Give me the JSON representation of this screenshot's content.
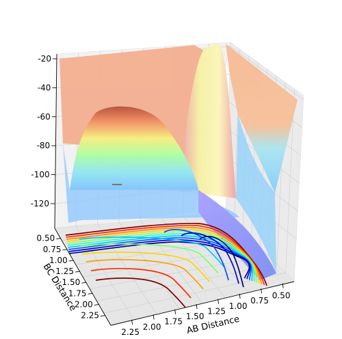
{
  "chart_data": {
    "type": "surface3d",
    "title": "",
    "xlabel": "AB Distance",
    "ylabel": "BC Distance",
    "zlabel": "",
    "z_ticks": [
      "-20",
      "-40",
      "-60",
      "-80",
      "-100",
      "-120"
    ],
    "ab_ticks": [
      "2.25",
      "2.00",
      "1.75",
      "1.50",
      "1.25",
      "1.00",
      "0.75",
      "0.50"
    ],
    "bc_ticks": [
      "0.50",
      "0.75",
      "1.00",
      "1.25",
      "1.50",
      "1.75",
      "2.00",
      "2.25"
    ],
    "colormap": "jet",
    "colormap_stops": [
      "#00007f",
      "#0000ff",
      "#007fff",
      "#00e5ff",
      "#7fff7f",
      "#ffe500",
      "#ff7f00",
      "#ff0000",
      "#7f0000"
    ],
    "surface_regions": [
      {
        "name": "outer-plateau-left",
        "color": "#f4ae8e"
      },
      {
        "name": "outer-plateau-right",
        "color": "#f7b48e"
      },
      {
        "name": "hill-top",
        "color": "#b64a33"
      },
      {
        "name": "hill-band-orange",
        "color": "#f79060"
      },
      {
        "name": "hill-band-yellow",
        "color": "#f6f27e"
      },
      {
        "name": "hill-band-green",
        "color": "#a6ff9e"
      },
      {
        "name": "hill-band-cyan",
        "color": "#8be8f0"
      },
      {
        "name": "valley-blue",
        "color": "#8fbfff"
      },
      {
        "name": "channel-blue",
        "color": "#9a95f8"
      },
      {
        "name": "ridge-pink",
        "color": "#ef9ea6"
      },
      {
        "name": "ridge-yellow",
        "color": "#f7f4a6"
      }
    ],
    "contour_colors": [
      "#800000",
      "#ff2a00",
      "#ff8c00",
      "#ffd500",
      "#8cff6e",
      "#2bffcf",
      "#00c8ff",
      "#0064ff",
      "#0000e0",
      "#00007f"
    ],
    "grid": true
  }
}
